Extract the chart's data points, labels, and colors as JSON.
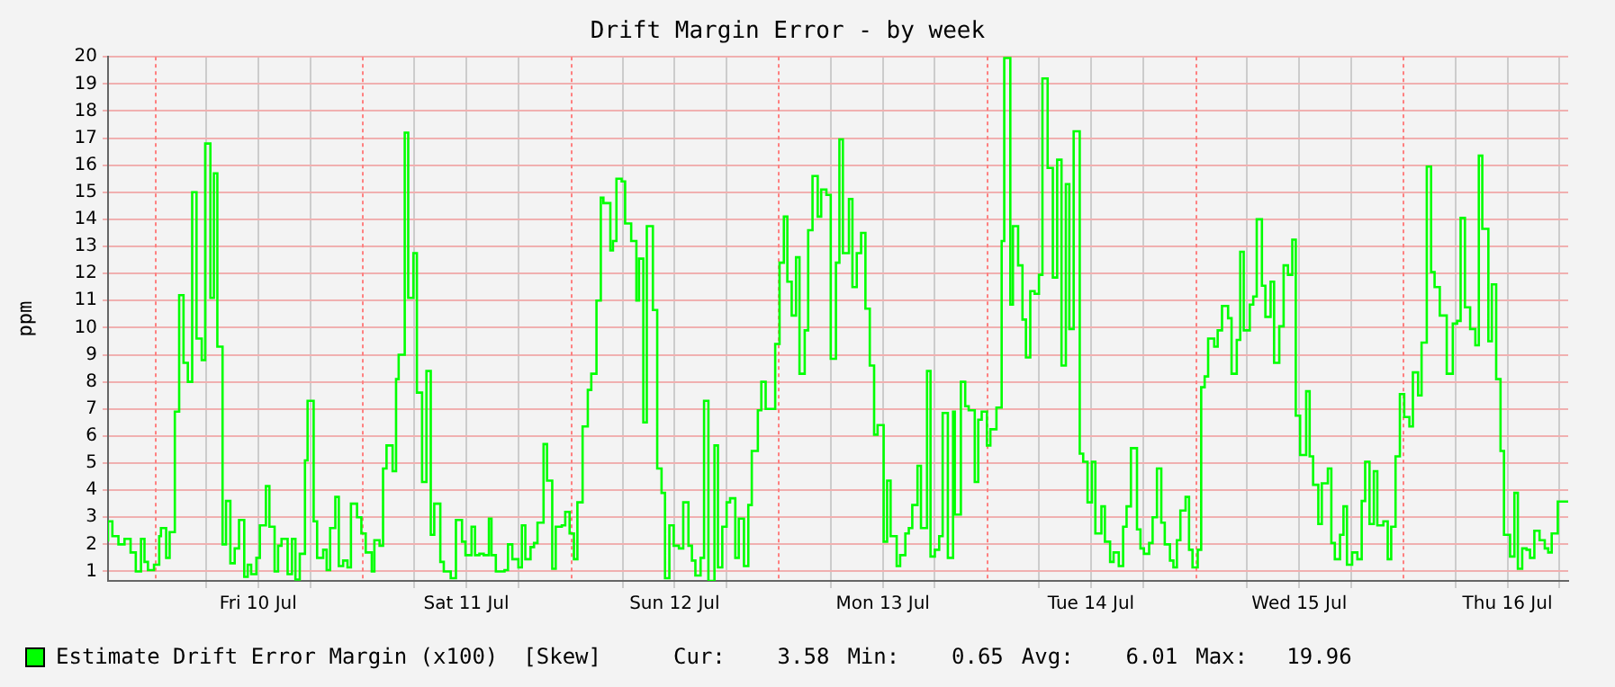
{
  "chart_data": {
    "type": "step",
    "title": "Drift Margin Error - by week",
    "ylabel": "ppm",
    "xlim": [
      "--07-09T18:42",
      "--07-16T19:00"
    ],
    "ylim": [
      0.65,
      20
    ],
    "xticks": [
      {
        "value": "--07-10T06:00",
        "label": null
      },
      {
        "value": "--07-10T12:00",
        "label": "Fri 10 Jul"
      },
      {
        "value": "--07-10T18:00",
        "label": null
      },
      {
        "value": "--07-11T06:00",
        "label": null
      },
      {
        "value": "--07-11T12:00",
        "label": "Sat 11 Jul"
      },
      {
        "value": "--07-11T18:00",
        "label": null
      },
      {
        "value": "--07-12T06:00",
        "label": null
      },
      {
        "value": "--07-12T12:00",
        "label": "Sun 12 Jul"
      },
      {
        "value": "--07-12T18:00",
        "label": null
      },
      {
        "value": "--07-13T06:00",
        "label": null
      },
      {
        "value": "--07-13T12:00",
        "label": "Mon 13 Jul"
      },
      {
        "value": "--07-13T18:00",
        "label": null
      },
      {
        "value": "--07-14T06:00",
        "label": null
      },
      {
        "value": "--07-14T12:00",
        "label": "Tue 14 Jul"
      },
      {
        "value": "--07-14T18:00",
        "label": null
      },
      {
        "value": "--07-15T06:00",
        "label": null
      },
      {
        "value": "--07-15T12:00",
        "label": "Wed 15 Jul"
      },
      {
        "value": "--07-15T18:00",
        "label": null
      },
      {
        "value": "--07-16T06:00",
        "label": null
      },
      {
        "value": "--07-16T12:00",
        "label": "Thu 16 Jul"
      },
      {
        "value": "--07-16T18:00",
        "label": null
      }
    ],
    "yticks": [
      1,
      2,
      3,
      4,
      5,
      6,
      7,
      8,
      9,
      10,
      11,
      12,
      13,
      14,
      15,
      16,
      17,
      18,
      19,
      20
    ],
    "grid": true,
    "legend": "bottom",
    "ref_lines": [
      {
        "axis": "x",
        "value": "--07-10T00:00",
        "color": "#ff8080",
        "line_style": "dotted"
      },
      {
        "axis": "x",
        "value": "--07-11T00:00",
        "color": "#ff8080",
        "line_style": "dotted"
      },
      {
        "axis": "x",
        "value": "--07-12T00:00",
        "color": "#ff8080",
        "line_style": "dotted"
      },
      {
        "axis": "x",
        "value": "--07-13T00:00",
        "color": "#ff8080",
        "line_style": "dotted"
      },
      {
        "axis": "x",
        "value": "--07-14T00:00",
        "color": "#ff8080",
        "line_style": "dotted"
      },
      {
        "axis": "x",
        "value": "--07-15T00:00",
        "color": "#ff8080",
        "line_style": "dotted"
      },
      {
        "axis": "x",
        "value": "--07-16T00:00",
        "color": "#ff8080",
        "line_style": "dotted"
      }
    ],
    "annotations": [
      "[Skew]",
      "Cur:    3.58",
      "Min:    0.65",
      "Avg:    6.01",
      "Max:   19.96"
    ],
    "series": [
      {
        "name": "Estimate Drift Error Margin (x100)",
        "color": "#00ff00",
        "x": [
          "--07-09T18:42",
          "--07-09T19:12",
          "--07-09T19:54",
          "--07-09T20:36",
          "--07-09T21:18",
          "--07-09T21:54",
          "--07-09T22:30",
          "--07-09T22:54",
          "--07-09T23:18",
          "--07-10T00:00",
          "--07-10T00:36",
          "--07-10T00:48",
          "--07-10T01:24",
          "--07-10T01:48",
          "--07-10T02:24",
          "--07-10T02:54",
          "--07-10T03:24",
          "--07-10T03:54",
          "--07-10T04:24",
          "--07-10T04:54",
          "--07-10T05:30",
          "--07-10T05:54",
          "--07-10T06:30",
          "--07-10T06:54",
          "--07-10T07:18",
          "--07-10T07:54",
          "--07-10T08:18",
          "--07-10T08:48",
          "--07-10T09:18",
          "--07-10T09:48",
          "--07-10T10:24",
          "--07-10T10:48",
          "--07-10T11:12",
          "--07-10T11:48",
          "--07-10T12:12",
          "--07-10T12:54",
          "--07-10T13:18",
          "--07-10T13:54",
          "--07-10T14:18",
          "--07-10T14:42",
          "--07-10T15:24",
          "--07-10T15:54",
          "--07-10T16:18",
          "--07-10T16:48",
          "--07-10T17:24",
          "--07-10T17:42",
          "--07-10T18:24",
          "--07-10T18:48",
          "--07-10T19:30",
          "--07-10T19:54",
          "--07-10T20:18",
          "--07-10T20:54",
          "--07-10T21:18",
          "--07-10T21:48",
          "--07-10T22:18",
          "--07-10T22:42",
          "--07-10T23:24",
          "--07-10T23:54",
          "--07-11T00:24",
          "--07-11T01:06",
          "--07-11T01:24",
          "--07-11T02:00",
          "--07-11T02:24",
          "--07-11T02:48",
          "--07-11T03:30",
          "--07-11T03:54",
          "--07-11T04:12",
          "--07-11T04:54",
          "--07-11T05:18",
          "--07-11T05:54",
          "--07-11T06:18",
          "--07-11T06:54",
          "--07-11T07:24",
          "--07-11T07:54",
          "--07-11T08:18",
          "--07-11T09:00",
          "--07-11T09:24",
          "--07-11T10:12",
          "--07-11T10:48",
          "--07-11T11:30",
          "--07-11T11:54",
          "--07-11T12:36",
          "--07-11T13:00",
          "--07-11T13:30",
          "--07-11T14:00",
          "--07-11T14:36",
          "--07-11T14:54",
          "--07-11T15:24",
          "--07-11T16:24",
          "--07-11T16:48",
          "--07-11T17:18",
          "--07-11T18:00",
          "--07-11T18:24",
          "--07-11T18:48",
          "--07-11T19:24",
          "--07-11T19:48",
          "--07-11T20:12",
          "--07-11T20:54",
          "--07-11T21:18",
          "--07-11T21:54",
          "--07-11T22:18",
          "--07-11T23:00",
          "--07-11T23:24",
          "--07-11T23:54",
          "--07-12T00:24",
          "--07-12T00:48",
          "--07-12T01:24",
          "--07-12T02:00",
          "--07-12T02:24",
          "--07-12T03:00",
          "--07-12T03:30",
          "--07-12T03:48",
          "--07-12T04:36",
          "--07-12T04:54",
          "--07-12T05:18",
          "--07-12T05:54",
          "--07-12T06:18",
          "--07-12T07:00",
          "--07-12T07:36",
          "--07-12T07:54",
          "--07-12T08:24",
          "--07-12T08:48",
          "--07-12T09:30",
          "--07-12T10:00",
          "--07-12T10:30",
          "--07-12T10:54",
          "--07-12T11:24",
          "--07-12T11:54",
          "--07-12T12:30",
          "--07-12T13:00",
          "--07-12T13:36",
          "--07-12T14:00",
          "--07-12T14:24",
          "--07-12T15:00",
          "--07-12T15:24",
          "--07-12T15:54",
          "--07-12T16:36",
          "--07-12T17:00",
          "--07-12T17:30",
          "--07-12T18:00",
          "--07-12T18:24",
          "--07-12T19:00",
          "--07-12T19:24",
          "--07-12T20:00",
          "--07-12T20:30",
          "--07-12T20:54",
          "--07-12T21:36",
          "--07-12T22:00",
          "--07-12T22:30",
          "--07-12T23:36",
          "--07-13T00:06",
          "--07-13T00:36",
          "--07-13T01:00",
          "--07-13T01:30",
          "--07-13T02:00",
          "--07-13T02:24",
          "--07-13T03:00",
          "--07-13T03:24",
          "--07-13T03:54",
          "--07-13T04:30",
          "--07-13T04:54",
          "--07-13T05:30",
          "--07-13T06:00",
          "--07-13T06:36",
          "--07-13T07:00",
          "--07-13T07:24",
          "--07-13T08:06",
          "--07-13T08:30",
          "--07-13T09:00",
          "--07-13T09:30",
          "--07-13T10:00",
          "--07-13T10:30",
          "--07-13T11:00",
          "--07-13T11:24",
          "--07-13T12:06",
          "--07-13T12:30",
          "--07-13T12:54",
          "--07-13T13:36",
          "--07-13T14:00",
          "--07-13T14:36",
          "--07-13T15:00",
          "--07-13T15:24",
          "--07-13T16:00",
          "--07-13T16:24",
          "--07-13T17:06",
          "--07-13T17:30",
          "--07-13T18:00",
          "--07-13T18:30",
          "--07-13T18:54",
          "--07-13T19:30",
          "--07-13T20:06",
          "--07-13T20:18",
          "--07-13T21:00",
          "--07-13T21:30",
          "--07-13T21:54",
          "--07-13T22:36",
          "--07-13T23:00",
          "--07-13T23:24",
          "--07-14T00:00",
          "--07-14T00:24",
          "--07-14T01:06",
          "--07-14T01:42",
          "--07-14T02:00",
          "--07-14T02:42",
          "--07-14T03:00",
          "--07-14T03:36",
          "--07-14T04:06",
          "--07-14T04:30",
          "--07-14T05:00",
          "--07-14T05:30",
          "--07-14T06:00",
          "--07-14T06:24",
          "--07-14T07:00",
          "--07-14T07:36",
          "--07-14T08:06",
          "--07-14T08:36",
          "--07-14T09:06",
          "--07-14T09:30",
          "--07-14T10:00",
          "--07-14T10:42",
          "--07-14T11:06",
          "--07-14T11:36",
          "--07-14T12:06",
          "--07-14T12:30",
          "--07-14T13:12",
          "--07-14T13:36",
          "--07-14T14:12",
          "--07-14T14:36",
          "--07-14T15:12",
          "--07-14T15:42",
          "--07-14T16:06",
          "--07-14T16:36",
          "--07-14T17:18",
          "--07-14T17:42",
          "--07-14T18:06",
          "--07-14T18:42",
          "--07-14T19:06",
          "--07-14T19:36",
          "--07-14T20:06",
          "--07-14T20:30",
          "--07-14T21:06",
          "--07-14T21:30",
          "--07-14T21:54",
          "--07-14T22:18",
          "--07-14T22:54",
          "--07-14T23:18",
          "--07-14T23:42",
          "--07-15T00:18",
          "--07-15T00:42",
          "--07-15T01:06",
          "--07-15T01:30",
          "--07-15T02:12",
          "--07-15T02:36",
          "--07-15T03:06",
          "--07-15T03:48",
          "--07-15T04:12",
          "--07-15T04:48",
          "--07-15T05:12",
          "--07-15T05:36",
          "--07-15T06:18",
          "--07-15T06:42",
          "--07-15T07:06",
          "--07-15T07:42",
          "--07-15T08:06",
          "--07-15T08:42",
          "--07-15T09:06",
          "--07-15T09:42",
          "--07-15T10:12",
          "--07-15T10:42",
          "--07-15T11:12",
          "--07-15T11:36",
          "--07-15T12:06",
          "--07-15T12:48",
          "--07-15T13:12",
          "--07-15T13:36",
          "--07-15T14:12",
          "--07-15T14:36",
          "--07-15T15:18",
          "--07-15T15:42",
          "--07-15T16:06",
          "--07-15T16:42",
          "--07-15T17:06",
          "--07-15T17:30",
          "--07-15T18:06",
          "--07-15T18:42",
          "--07-15T19:12",
          "--07-15T19:36",
          "--07-15T20:06",
          "--07-15T20:36",
          "--07-15T21:00",
          "--07-15T21:42",
          "--07-15T22:12",
          "--07-15T22:36",
          "--07-15T23:06",
          "--07-15T23:36",
          "--07-16T00:06",
          "--07-16T00:42",
          "--07-16T01:06",
          "--07-16T01:42",
          "--07-16T02:06",
          "--07-16T02:42",
          "--07-16T03:12",
          "--07-16T03:36",
          "--07-16T04:12",
          "--07-16T05:00",
          "--07-16T05:42",
          "--07-16T06:12",
          "--07-16T06:36",
          "--07-16T07:06",
          "--07-16T07:42",
          "--07-16T08:18",
          "--07-16T08:42",
          "--07-16T09:06",
          "--07-16T09:48",
          "--07-16T10:12",
          "--07-16T10:42",
          "--07-16T11:12",
          "--07-16T11:36",
          "--07-16T12:18",
          "--07-16T12:48",
          "--07-16T13:12",
          "--07-16T13:42",
          "--07-16T14:12",
          "--07-16T14:36",
          "--07-16T15:06",
          "--07-16T15:42",
          "--07-16T16:18",
          "--07-16T16:42",
          "--07-16T17:06",
          "--07-16T17:48",
          "--07-16T18:06",
          "--07-16T19:00"
        ],
        "values": [
          2.1,
          2.85,
          2.3,
          2.0,
          2.2,
          1.7,
          1.0,
          2.2,
          1.35,
          1.05,
          1.25,
          2.3,
          2.6,
          1.5,
          2.45,
          6.9,
          11.2,
          8.7,
          8.0,
          15.0,
          9.6,
          8.8,
          16.8,
          11.1,
          15.7,
          9.3,
          2.0,
          3.6,
          1.3,
          1.85,
          2.9,
          0.8,
          1.25,
          0.9,
          1.5,
          2.7,
          4.15,
          2.65,
          1.0,
          1.95,
          2.2,
          0.9,
          2.2,
          0.7,
          1.65,
          5.1,
          7.3,
          2.85,
          1.5,
          1.8,
          1.05,
          2.6,
          3.75,
          1.2,
          1.4,
          1.15,
          3.5,
          3.0,
          2.4,
          1.7,
          1.0,
          2.15,
          1.95,
          4.8,
          5.65,
          4.7,
          8.1,
          9.0,
          17.2,
          11.1,
          12.75,
          7.6,
          4.3,
          8.4,
          2.35,
          3.5,
          1.35,
          1.0,
          0.75,
          2.9,
          2.1,
          1.6,
          2.65,
          1.6,
          1.65,
          1.6,
          2.95,
          1.6,
          1.0,
          1.05,
          2.0,
          1.45,
          1.15,
          2.7,
          1.45,
          1.9,
          2.05,
          2.8,
          5.7,
          4.35,
          1.1,
          2.65,
          2.7,
          3.2,
          2.4,
          1.45,
          3.55,
          6.35,
          7.7,
          8.3,
          11.0,
          14.8,
          14.6,
          12.85,
          13.2,
          15.5,
          15.4,
          13.85,
          13.2,
          11.0,
          12.55,
          6.5,
          13.75,
          10.65,
          4.8,
          3.9,
          0.75,
          2.7,
          1.95,
          1.85,
          3.55,
          1.95,
          1.4,
          0.85,
          1.5,
          7.3,
          0.65,
          5.65,
          1.15,
          2.65,
          3.55,
          3.7,
          1.5,
          2.95,
          1.2,
          3.45,
          5.45,
          6.95,
          8.0,
          7.0,
          9.4,
          12.4,
          14.1,
          11.7,
          10.45,
          12.6,
          8.3,
          9.9,
          13.6,
          15.6,
          14.1,
          15.1,
          14.9,
          8.85,
          12.4,
          16.95,
          12.75,
          14.75,
          11.5,
          12.75,
          13.5,
          10.7,
          8.6,
          6.05,
          6.4,
          2.1,
          4.35,
          2.3,
          1.2,
          1.6,
          2.4,
          2.6,
          3.45,
          4.9,
          2.6,
          8.4,
          1.55,
          1.8,
          2.3,
          6.85,
          1.5,
          6.9,
          3.1,
          8.0,
          7.1,
          6.95,
          4.3,
          6.6,
          6.9,
          5.65,
          6.25,
          7.05,
          13.2,
          19.96,
          10.85,
          13.75,
          12.3,
          10.3,
          8.9,
          11.35,
          11.25,
          11.95,
          19.2,
          15.9,
          11.85,
          16.2,
          8.6,
          15.3,
          9.95,
          17.25,
          5.35,
          5.05,
          3.55,
          5.05,
          2.4,
          3.4,
          2.1,
          1.35,
          1.7,
          1.2,
          2.65,
          3.4,
          5.55,
          2.55,
          1.85,
          1.65,
          2.05,
          3.0,
          4.8,
          2.8,
          2.0,
          1.4,
          1.15,
          2.15,
          3.25,
          3.75,
          1.8,
          1.15,
          1.8,
          7.8,
          8.2,
          9.6,
          9.3,
          9.9,
          10.8,
          10.35,
          8.3,
          9.55,
          12.8,
          9.9,
          10.85,
          11.15,
          14.0,
          11.55,
          10.4,
          11.7,
          8.7,
          10.05,
          12.3,
          11.95,
          13.25,
          6.75,
          5.3,
          7.65,
          5.25,
          4.2,
          2.75,
          4.25,
          4.8,
          2.05,
          1.45,
          2.35,
          3.4,
          1.25,
          1.7,
          1.45,
          3.6,
          5.05,
          2.75,
          4.7,
          2.7,
          2.85,
          1.45,
          2.65,
          5.25,
          7.55,
          6.7,
          6.35,
          8.35,
          7.5,
          9.45,
          15.95,
          12.05,
          11.5,
          10.45,
          8.3,
          10.15,
          10.25,
          14.05,
          10.75,
          9.95,
          9.35,
          16.35,
          13.65,
          9.5,
          11.6,
          8.1,
          5.45,
          2.35,
          1.55,
          3.9,
          1.1,
          1.85,
          1.8,
          1.5,
          2.5,
          2.15,
          1.85,
          1.7,
          2.4,
          3.58,
          3.58
        ]
      }
    ]
  }
}
